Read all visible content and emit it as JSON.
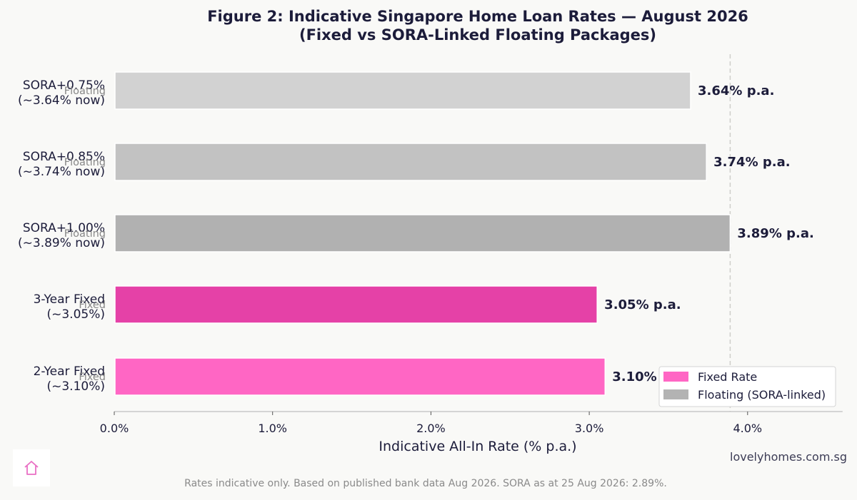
{
  "chart_data": {
    "type": "bar",
    "orientation": "horizontal",
    "title": "Figure 2: Indicative Singapore Home Loan Rates — August 2026",
    "subtitle": "(Fixed vs SORA-Linked Floating Packages)",
    "xlabel": "Indicative All-In Rate (% p.a.)",
    "ylabel": "",
    "xlim": [
      0,
      4.6
    ],
    "xticks": [
      0,
      1,
      2,
      3,
      4
    ],
    "xtick_labels": [
      "0.0%",
      "1.0%",
      "2.0%",
      "3.0%",
      "4.0%"
    ],
    "grid": false,
    "reference_line": 3.89,
    "legend_placement": "bottom-right",
    "legend": [
      {
        "label": "Fixed Rate",
        "color": "#ff66c4"
      },
      {
        "label": "Floating (SORA-linked)",
        "color": "#b3b3b3"
      }
    ],
    "bars": [
      {
        "label_line1": "SORA+0.75%",
        "label_line2": "(~3.64% now)",
        "type": "Floating",
        "value": 3.64,
        "value_label": "3.64% p.a.",
        "color": "#d2d2d2"
      },
      {
        "label_line1": "SORA+0.85%",
        "label_line2": "(~3.74% now)",
        "type": "Floating",
        "value": 3.74,
        "value_label": "3.74% p.a.",
        "color": "#c2c2c2"
      },
      {
        "label_line1": "SORA+1.00%",
        "label_line2": "(~3.89% now)",
        "type": "Floating",
        "value": 3.89,
        "value_label": "3.89% p.a.",
        "color": "#b1b1b1"
      },
      {
        "label_line1": "3-Year Fixed",
        "label_line2": "(~3.05%)",
        "type": "Fixed",
        "value": 3.05,
        "value_label": "3.05% p.a.",
        "color": "#e541a7"
      },
      {
        "label_line1": "2-Year Fixed",
        "label_line2": "(~3.10%)",
        "type": "Fixed",
        "value": 3.1,
        "value_label": "3.10% p.a.",
        "color": "#ff66c4"
      }
    ]
  },
  "source": "lovelyhomes.com.sg",
  "footnote": "Rates indicative only. Based on published bank data Aug 2026. SORA as at 25 Aug 2026: 2.89%.",
  "logo_icon": "home-icon"
}
